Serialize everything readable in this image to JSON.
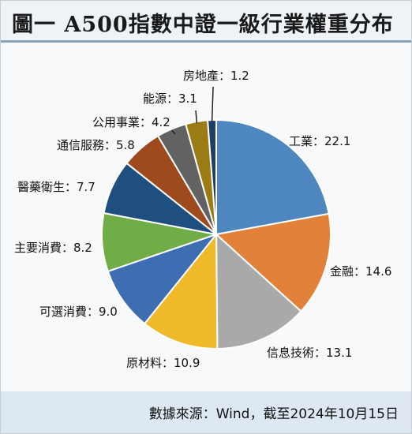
{
  "title": "圖一 A500指數中證一級行業權重分布",
  "source": "數據來源：Wind，截至2024年10月15日",
  "chart_data": {
    "type": "pie",
    "title": "圖一 A500指數中證一級行業權重分布",
    "slices": [
      {
        "name": "工業",
        "value": 22.1,
        "label": "工業：22.1",
        "color": "#4e86c0"
      },
      {
        "name": "金融",
        "value": 14.6,
        "label": "金融：14.6",
        "color": "#e2823a"
      },
      {
        "name": "信息技術",
        "value": 13.1,
        "label": "信息技術：13.1",
        "color": "#a9a9a9"
      },
      {
        "name": "原材料",
        "value": 10.9,
        "label": "原材料：10.9",
        "color": "#f0b929"
      },
      {
        "name": "可選消費",
        "value": 9.0,
        "label": "可選消費：9.0",
        "color": "#3d6eb2"
      },
      {
        "name": "主要消費",
        "value": 8.2,
        "label": "主要消費：8.2",
        "color": "#70ad47"
      },
      {
        "name": "醫藥衛生",
        "value": 7.7,
        "label": "醫藥衛生：7.7",
        "color": "#1f4f7e"
      },
      {
        "name": "通信服務",
        "value": 5.8,
        "label": "通信服務：5.8",
        "color": "#9e4a1c"
      },
      {
        "name": "公用事業",
        "value": 4.2,
        "label": "公用事業：4.2",
        "color": "#626262"
      },
      {
        "name": "能源",
        "value": 3.1,
        "label": "能源：3.1",
        "color": "#9b7b14"
      },
      {
        "name": "房地產",
        "value": 1.2,
        "label": "房地產：1.2",
        "color": "#1f3e66"
      }
    ]
  }
}
